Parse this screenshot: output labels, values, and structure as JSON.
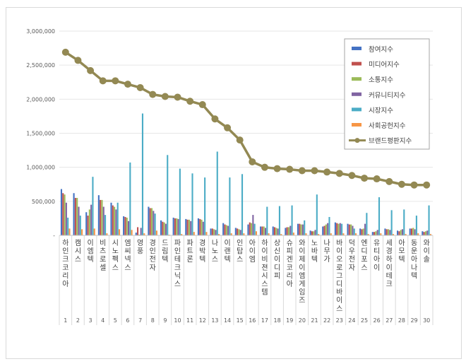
{
  "chart_data": {
    "type": "bar",
    "title": "",
    "xlabel": "",
    "ylabel": "",
    "ylim": [
      0,
      3000000
    ],
    "yticks": [
      0,
      500000,
      1000000,
      1500000,
      2000000,
      2500000,
      3000000
    ],
    "ytick_labels": [
      "-",
      "500,000",
      "1,000,000",
      "1,500,000",
      "2,000,000",
      "2,500,000",
      "3,000,000"
    ],
    "grid": "horizontal",
    "legend_position": "top-right",
    "ranks": [
      "1",
      "2",
      "3",
      "4",
      "5",
      "6",
      "7",
      "8",
      "9",
      "10",
      "11",
      "12",
      "13",
      "14",
      "15",
      "16",
      "17",
      "18",
      "19",
      "20",
      "21",
      "22",
      "23",
      "24",
      "25",
      "26",
      "27",
      "28",
      "29",
      "30"
    ],
    "categories": [
      "하인크코리아",
      "캠시스",
      "이엠텍",
      "비츠로셀",
      "시노펙스",
      "엠씨넥스",
      "영풍",
      "경인전자",
      "드림텍",
      "파인테크닉스",
      "파트론",
      "경박텍",
      "나노스",
      "이랜텍",
      "인탑스",
      "아이엠",
      "하이비젼시스템",
      "상신이디피",
      "슈피겐코리아",
      "와이제이엠게임즈",
      "노바텍",
      "나무가",
      "바이오로그디바이스",
      "덕우전자",
      "엔디포스",
      "유티아이",
      "세경하이테크",
      "아모텍",
      "동운아나텍",
      "와이솔"
    ],
    "series": [
      {
        "name": "참여지수",
        "color": "#4472c4",
        "values": [
          680000,
          620000,
          340000,
          590000,
          480000,
          280000,
          40000,
          420000,
          220000,
          260000,
          240000,
          250000,
          100000,
          180000,
          110000,
          160000,
          130000,
          130000,
          110000,
          170000,
          70000,
          130000,
          190000,
          170000,
          100000,
          50000,
          100000,
          70000,
          100000,
          60000
        ]
      },
      {
        "name": "미디어지수",
        "color": "#c0504d",
        "values": [
          620000,
          550000,
          290000,
          520000,
          440000,
          270000,
          120000,
          400000,
          200000,
          250000,
          230000,
          240000,
          100000,
          160000,
          100000,
          190000,
          130000,
          120000,
          120000,
          170000,
          60000,
          140000,
          180000,
          160000,
          90000,
          50000,
          90000,
          60000,
          100000,
          50000
        ]
      },
      {
        "name": "소통지수",
        "color": "#9bbb59",
        "values": [
          600000,
          550000,
          380000,
          520000,
          420000,
          260000,
          10000,
          400000,
          190000,
          250000,
          230000,
          230000,
          90000,
          150000,
          90000,
          180000,
          130000,
          110000,
          120000,
          160000,
          60000,
          160000,
          170000,
          160000,
          100000,
          60000,
          90000,
          80000,
          110000,
          60000
        ]
      },
      {
        "name": "커뮤니티지수",
        "color": "#8064a2",
        "values": [
          480000,
          420000,
          450000,
          420000,
          380000,
          210000,
          110000,
          360000,
          170000,
          240000,
          210000,
          200000,
          80000,
          140000,
          80000,
          300000,
          110000,
          100000,
          140000,
          160000,
          80000,
          180000,
          180000,
          140000,
          170000,
          80000,
          80000,
          90000,
          90000,
          70000
        ]
      },
      {
        "name": "시장지수",
        "color": "#4bacc6",
        "values": [
          260000,
          290000,
          860000,
          300000,
          480000,
          1070000,
          1790000,
          320000,
          1180000,
          980000,
          910000,
          850000,
          1230000,
          850000,
          900000,
          170000,
          420000,
          430000,
          440000,
          220000,
          600000,
          270000,
          170000,
          100000,
          330000,
          560000,
          370000,
          380000,
          290000,
          440000
        ]
      },
      {
        "name": "사회공헌지수",
        "color": "#f79646",
        "values": [
          100000,
          90000,
          100000,
          30000,
          90000,
          80000,
          30000,
          70000,
          10000,
          20000,
          50000,
          50000,
          20000,
          30000,
          30000,
          60000,
          30000,
          20000,
          40000,
          30000,
          20000,
          30000,
          30000,
          30000,
          20000,
          30000,
          20000,
          20000,
          30000,
          20000
        ]
      }
    ],
    "line": {
      "name": "브랜드평판지수",
      "color": "#938953",
      "values": [
        2690000,
        2570000,
        2420000,
        2270000,
        2270000,
        2220000,
        2170000,
        2070000,
        2040000,
        2030000,
        1970000,
        1920000,
        1710000,
        1580000,
        1400000,
        1080000,
        1000000,
        980000,
        970000,
        950000,
        950000,
        930000,
        910000,
        880000,
        840000,
        830000,
        790000,
        750000,
        740000,
        740000
      ]
    }
  }
}
